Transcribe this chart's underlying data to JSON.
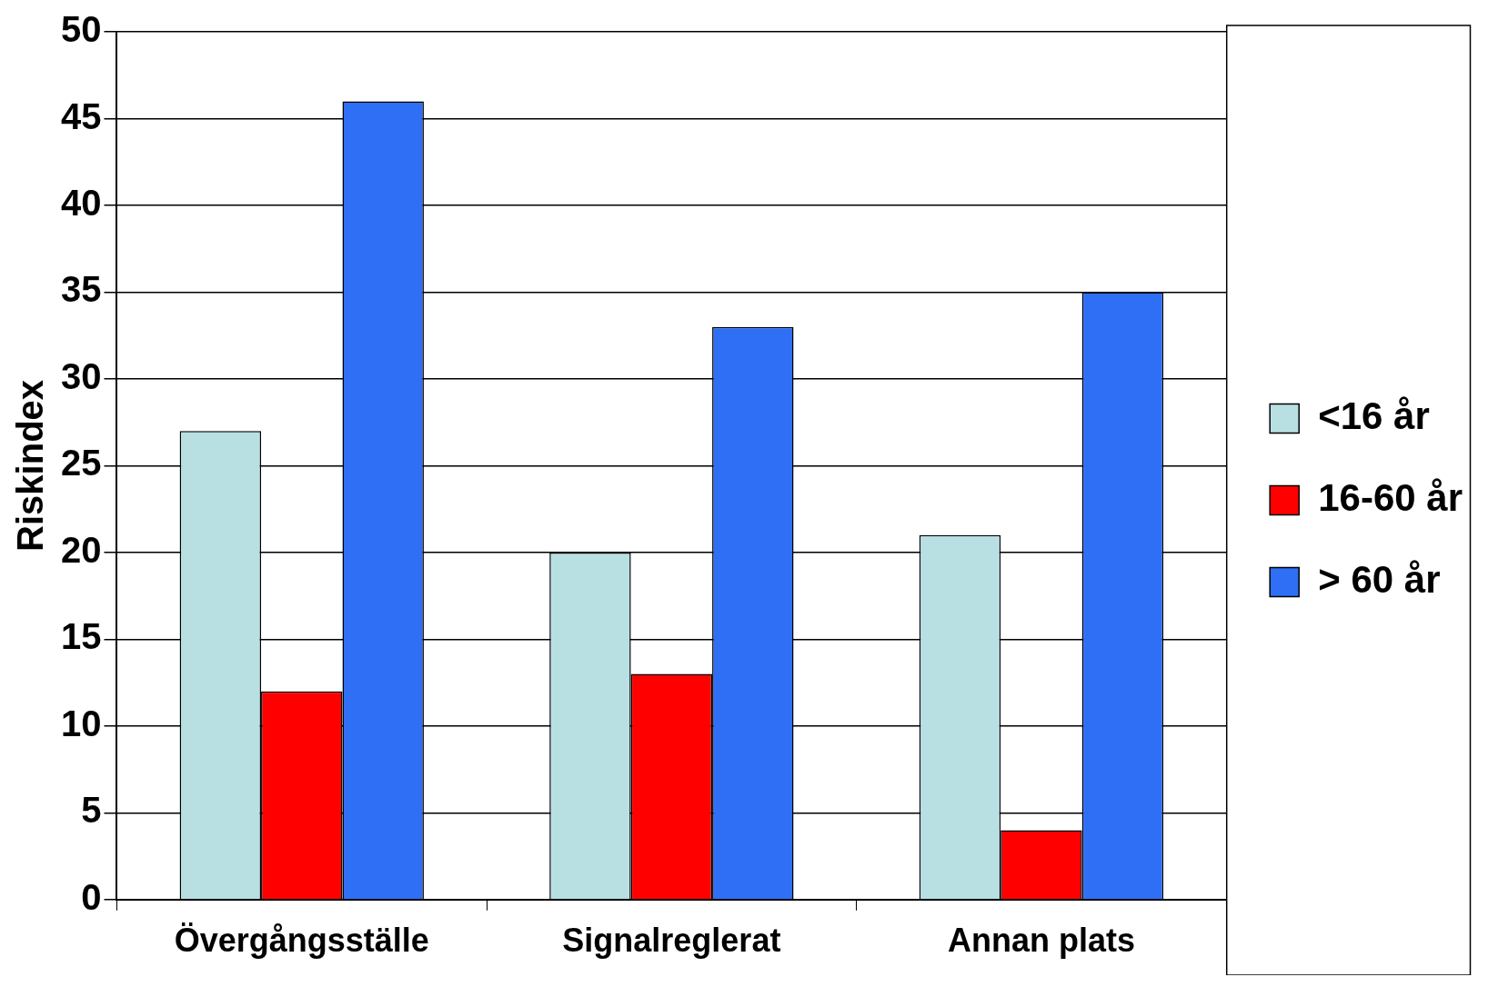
{
  "chart_data": {
    "type": "bar",
    "ylabel": "Riskindex",
    "categories": [
      "Övergångsställe",
      "Signalreglerat",
      "Annan plats"
    ],
    "series": [
      {
        "name": "<16 år",
        "color": "#b8e0e2",
        "values": [
          27,
          20,
          21
        ]
      },
      {
        "name": "16-60 år",
        "color": "#ff0000",
        "values": [
          12,
          13,
          4
        ]
      },
      {
        "name": "> 60 år",
        "color": "#2f6ff5",
        "values": [
          46,
          33,
          35
        ]
      }
    ],
    "ylim": [
      0,
      50
    ],
    "yticks": [
      0,
      5,
      10,
      15,
      20,
      25,
      30,
      35,
      40,
      45,
      50
    ],
    "grid": "y",
    "legend": "right"
  }
}
